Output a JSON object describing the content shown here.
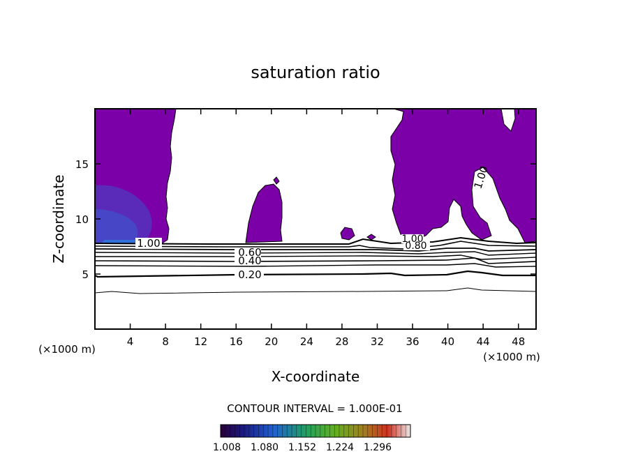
{
  "chart_data": {
    "type": "contour",
    "title": "saturation ratio",
    "xlabel": "X-coordinate",
    "ylabel": "Z-coordinate",
    "x_unit_left": "(×1000 m)",
    "x_unit_right": "(×1000 m)",
    "xlim": [
      0,
      50
    ],
    "ylim": [
      0,
      20
    ],
    "x_ticks": [
      "4",
      "8",
      "12",
      "16",
      "20",
      "24",
      "28",
      "32",
      "36",
      "40",
      "44",
      "48"
    ],
    "x_tick_values": [
      4,
      8,
      12,
      16,
      20,
      24,
      28,
      32,
      36,
      40,
      44,
      48
    ],
    "y_ticks": [
      "5",
      "10",
      "15"
    ],
    "y_tick_values": [
      5,
      10,
      15
    ],
    "contour_interval_text": "CONTOUR INTERVAL = 1.000E-01",
    "contour_labels": [
      {
        "text": "1.00",
        "x": 6.3,
        "z": 7.8
      },
      {
        "text": "0.60",
        "x": 17.5,
        "z": 6.6
      },
      {
        "text": "0.40",
        "x": 17.5,
        "z": 6.0
      },
      {
        "text": "0.20",
        "x": 17.5,
        "z": 4.9
      },
      {
        "text": "1.00",
        "x": 36.0,
        "z": 8.1
      },
      {
        "text": "0.80",
        "x": 36.8,
        "z": 7.7
      },
      {
        "text": "1.00",
        "x": 44.5,
        "z": 13.2
      }
    ],
    "contour_levels_lines": [
      0.1,
      0.2,
      0.3,
      0.4,
      0.5,
      0.6,
      0.7,
      0.8,
      0.9,
      1.0
    ],
    "shaded_min": 1.008,
    "colorbar_labels": [
      "1.008",
      "1.080",
      "1.152",
      "1.224",
      "1.296"
    ],
    "colors": {
      "fill_main": "#7b00a8",
      "fill_dark": "#5a13a0",
      "fill_blue": "#3a4fc0"
    }
  }
}
